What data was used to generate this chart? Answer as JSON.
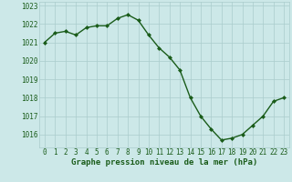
{
  "x": [
    0,
    1,
    2,
    3,
    4,
    5,
    6,
    7,
    8,
    9,
    10,
    11,
    12,
    13,
    14,
    15,
    16,
    17,
    18,
    19,
    20,
    21,
    22,
    23
  ],
  "y": [
    1021.0,
    1021.5,
    1021.6,
    1021.4,
    1021.8,
    1021.9,
    1021.9,
    1022.3,
    1022.5,
    1022.2,
    1021.4,
    1020.7,
    1020.2,
    1019.5,
    1018.0,
    1017.0,
    1016.3,
    1015.7,
    1015.8,
    1016.0,
    1016.5,
    1017.0,
    1017.8,
    1018.0
  ],
  "line_color": "#1a5c1a",
  "marker": "D",
  "markersize": 2.0,
  "linewidth": 1.0,
  "bg_color": "#cce8e8",
  "grid_color": "#aacccc",
  "xlabel": "Graphe pression niveau de la mer (hPa)",
  "xlabel_fontsize": 6.5,
  "xlabel_color": "#1a5c1a",
  "ylabel_ticks": [
    1016,
    1017,
    1018,
    1019,
    1020,
    1021,
    1022,
    1023
  ],
  "ylim": [
    1015.3,
    1023.2
  ],
  "xlim": [
    -0.5,
    23.5
  ],
  "tick_fontsize": 5.5,
  "tick_color": "#1a5c1a"
}
